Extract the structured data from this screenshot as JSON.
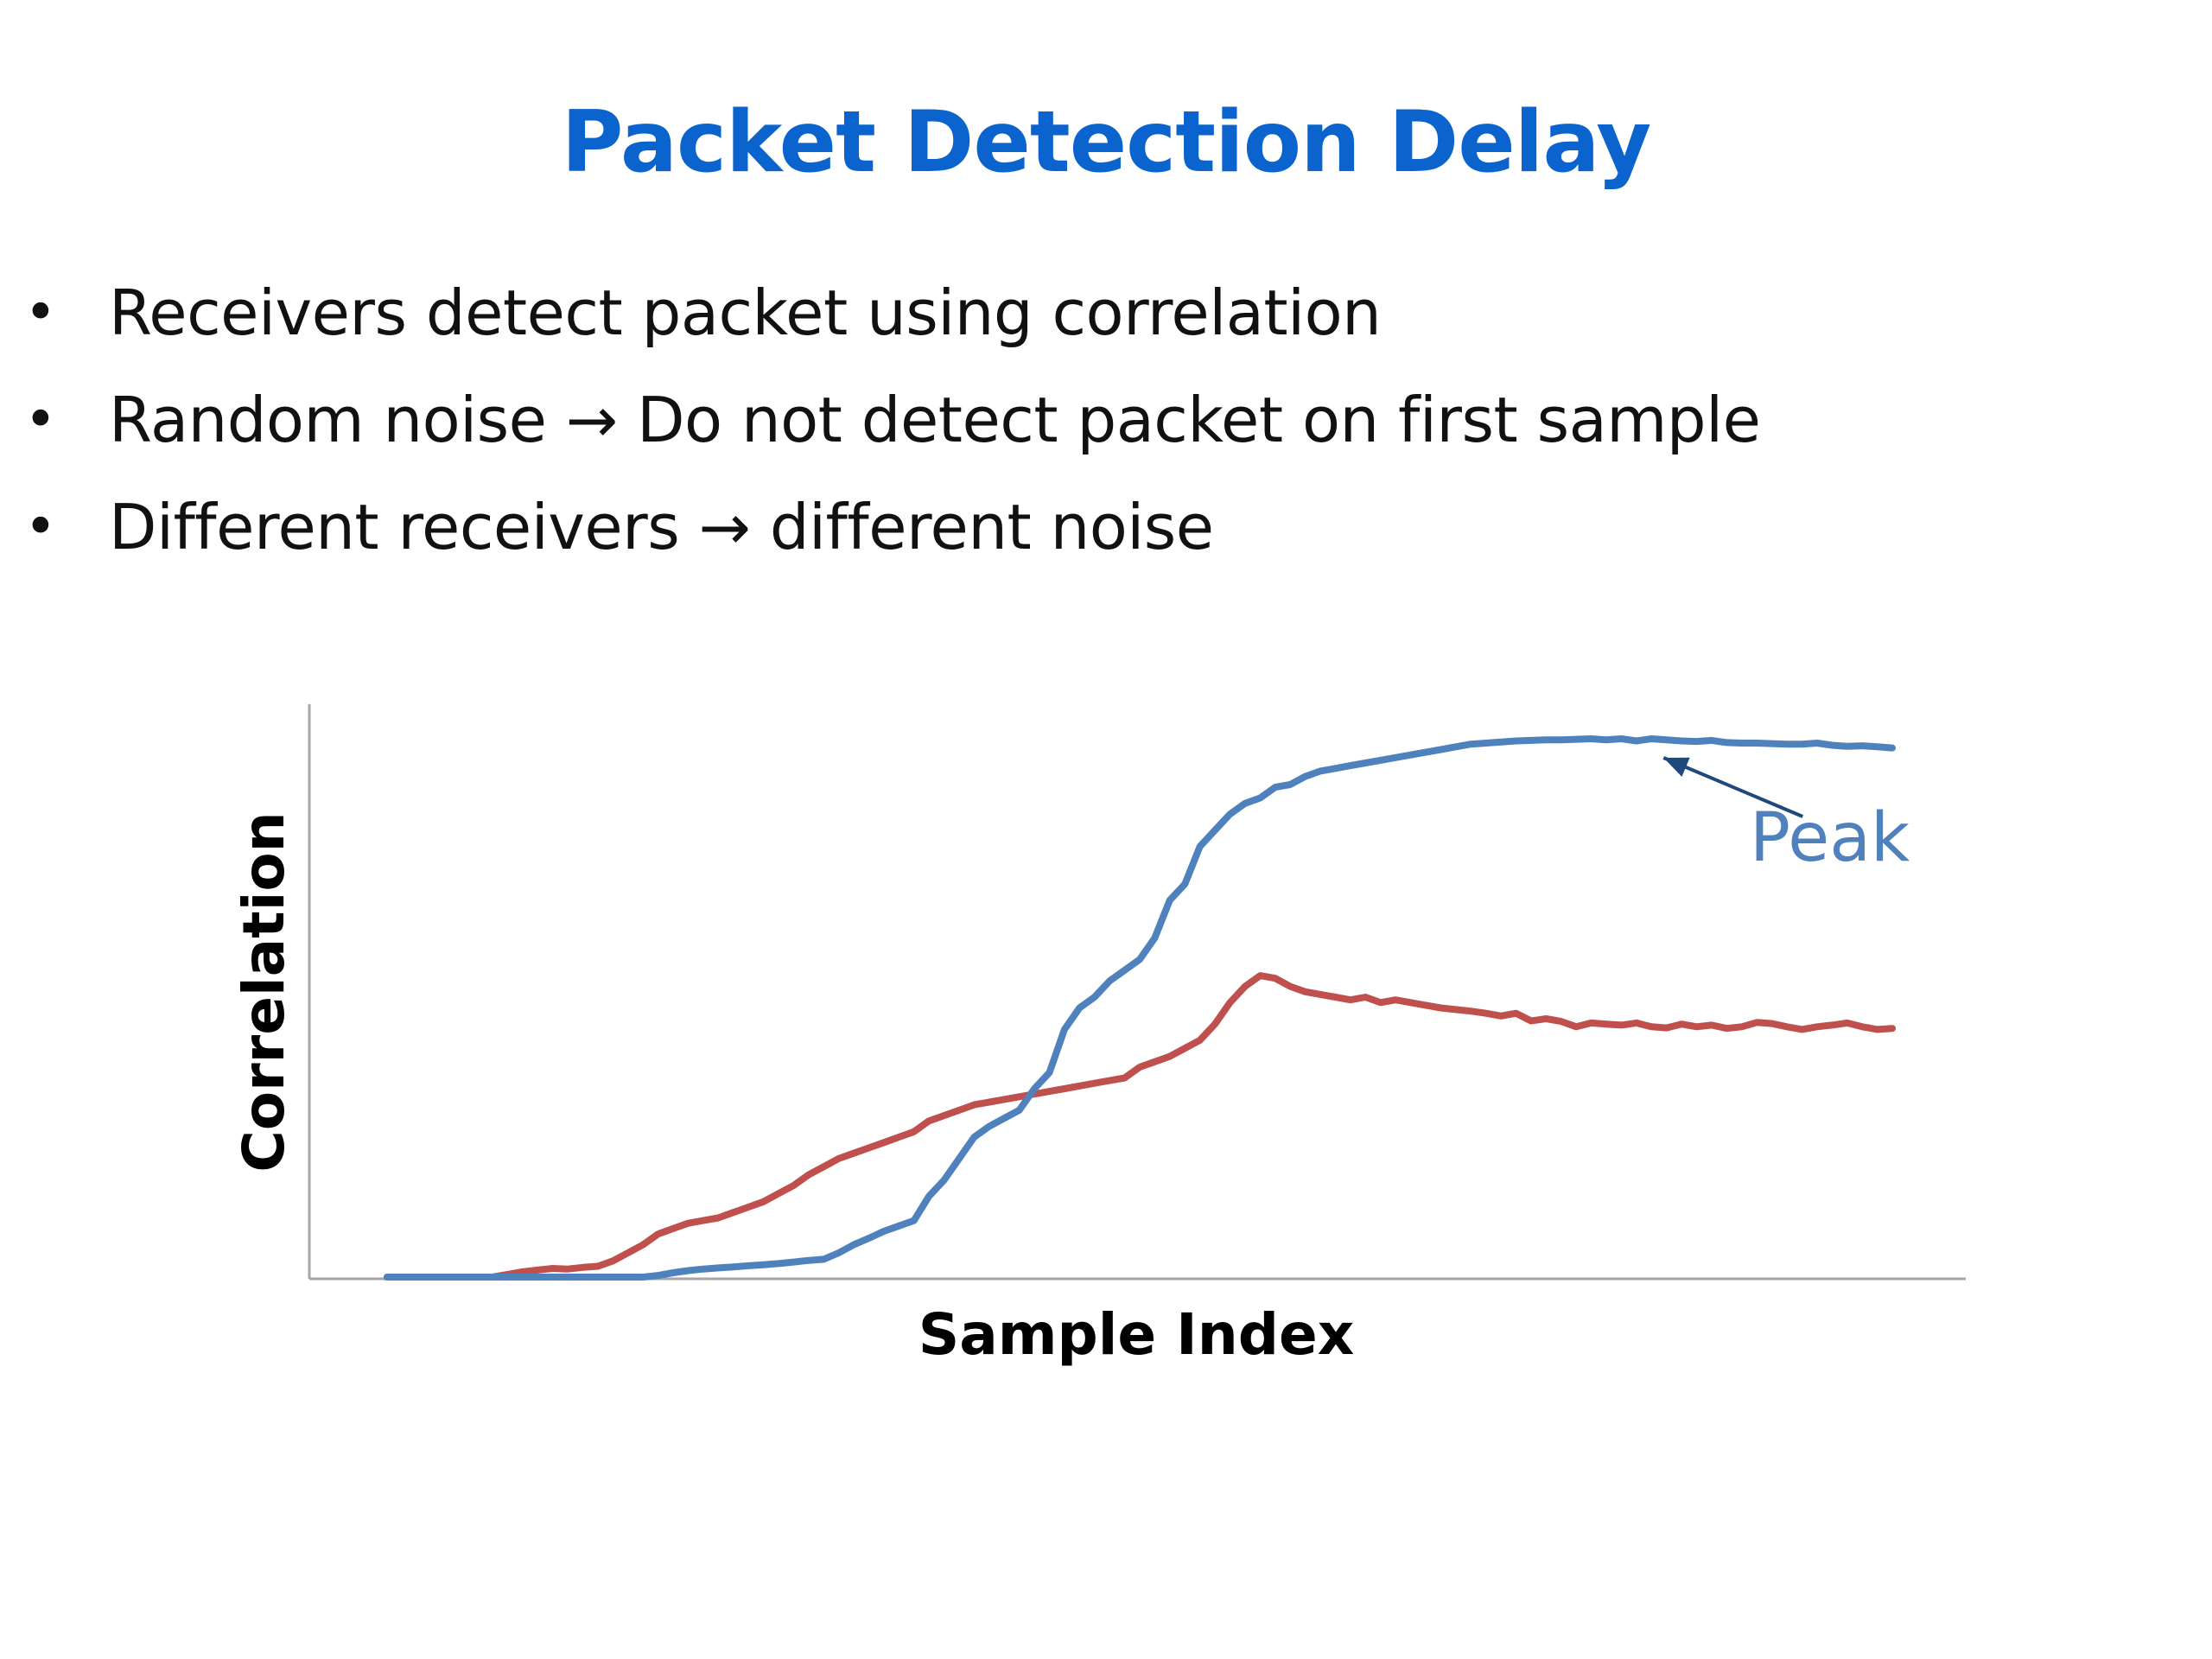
{
  "slide": {
    "title": "Packet Detection Delay",
    "bullets": [
      {
        "symbol": "•",
        "text": "Receivers detect packet using  correlation"
      },
      {
        "symbol": "•",
        "text": "Random noise → Do not detect packet on first sample"
      },
      {
        "symbol": "•",
        "text": "Different receivers → different noise"
      }
    ],
    "colors": {
      "title": "#0b63ce",
      "text": "#111111"
    }
  },
  "chart_data": {
    "type": "line",
    "title": "",
    "xlabel": "Sample Index",
    "ylabel": "Correlation",
    "ylim": [
      0,
      100
    ],
    "grid": false,
    "legend": "none",
    "annotation": {
      "text": "Peak",
      "series": "blue",
      "x": 84
    },
    "series": [
      {
        "key": "blue",
        "color": "#4f81bd",
        "x": [
          0,
          1,
          2,
          3,
          4,
          5,
          6,
          7,
          8,
          9,
          10,
          11,
          12,
          13,
          14,
          15,
          16,
          17,
          18,
          19,
          20,
          21,
          22,
          23,
          24,
          25,
          26,
          27,
          28,
          29,
          30,
          31,
          32,
          33,
          34,
          35,
          36,
          37,
          38,
          39,
          40,
          41,
          42,
          43,
          44,
          45,
          46,
          47,
          48,
          49,
          50,
          51,
          52,
          53,
          54,
          55,
          56,
          57,
          58,
          59,
          60,
          61,
          62,
          63,
          64,
          65,
          66,
          67,
          68,
          69,
          70,
          71,
          72,
          73,
          74,
          75,
          76,
          77,
          78,
          79,
          80,
          81,
          82,
          83,
          84,
          85,
          86,
          87,
          88,
          89,
          90,
          91,
          92,
          93,
          94,
          95,
          96,
          97,
          98,
          99,
          100
        ],
        "values": [
          0,
          0,
          0,
          0,
          0,
          0,
          0,
          0,
          0,
          0,
          0,
          0,
          0,
          0,
          0,
          0,
          0,
          0,
          0.3,
          0.8,
          1.2,
          1.5,
          1.7,
          1.9,
          2.1,
          2.3,
          2.5,
          2.8,
          3.1,
          3.3,
          4.5,
          6,
          7.2,
          8.5,
          9.5,
          10.5,
          15,
          18,
          22,
          26,
          28,
          29.5,
          31,
          35,
          38,
          46,
          50,
          52,
          55,
          57,
          59,
          63,
          70,
          73,
          80,
          83,
          86,
          88,
          89,
          91,
          91.5,
          93,
          94,
          94.5,
          95,
          95.5,
          96,
          96.5,
          97,
          97.5,
          98,
          98.5,
          99,
          99.2,
          99.4,
          99.6,
          99.7,
          99.8,
          99.8,
          99.9,
          100,
          99.8,
          100,
          99.6,
          100,
          99.8,
          99.6,
          99.5,
          99.7,
          99.3,
          99.2,
          99.2,
          99.1,
          99,
          99,
          99.2,
          98.8,
          98.6,
          98.7,
          98.5,
          98.3
        ]
      },
      {
        "key": "red",
        "color": "#c0504d",
        "x": [
          0,
          1,
          2,
          3,
          4,
          5,
          6,
          7,
          8,
          9,
          10,
          11,
          12,
          13,
          14,
          15,
          16,
          17,
          18,
          19,
          20,
          21,
          22,
          23,
          24,
          25,
          26,
          27,
          28,
          29,
          30,
          31,
          32,
          33,
          34,
          35,
          36,
          37,
          38,
          39,
          40,
          41,
          42,
          43,
          44,
          45,
          46,
          47,
          48,
          49,
          50,
          51,
          52,
          53,
          54,
          55,
          56,
          57,
          58,
          59,
          60,
          61,
          62,
          63,
          64,
          65,
          66,
          67,
          68,
          69,
          70,
          71,
          72,
          73,
          74,
          75,
          76,
          77,
          78,
          79,
          80,
          81,
          82,
          83,
          84,
          85,
          86,
          87,
          88,
          89,
          90,
          91,
          92,
          93,
          94,
          95,
          96,
          97,
          98,
          99,
          100
        ],
        "values": [
          0,
          0,
          0,
          0,
          0,
          0,
          0,
          0,
          0.5,
          1,
          1.3,
          1.6,
          1.5,
          1.8,
          2,
          3,
          4.5,
          6,
          8,
          9,
          10,
          10.5,
          11,
          12,
          13,
          14,
          15.5,
          17,
          19,
          20.5,
          22,
          23,
          24,
          25,
          26,
          27,
          29,
          30,
          31,
          32,
          32.5,
          33,
          33.5,
          34,
          34.5,
          35,
          35.5,
          36,
          36.5,
          37,
          39,
          40,
          41,
          42.5,
          44,
          47,
          51,
          54,
          56,
          55.5,
          54,
          53,
          52.5,
          52,
          51.5,
          52,
          51,
          51.5,
          51,
          50.5,
          50,
          49.7,
          49.4,
          49,
          48.5,
          49,
          47.6,
          48,
          47.5,
          46.5,
          47.2,
          47,
          46.8,
          47.2,
          46.5,
          46.3,
          47,
          46.5,
          46.8,
          46.2,
          46.5,
          47.3,
          47.1,
          46.5,
          46,
          46.5,
          46.8,
          47.2,
          46.5,
          46,
          46.2
        ]
      }
    ]
  }
}
